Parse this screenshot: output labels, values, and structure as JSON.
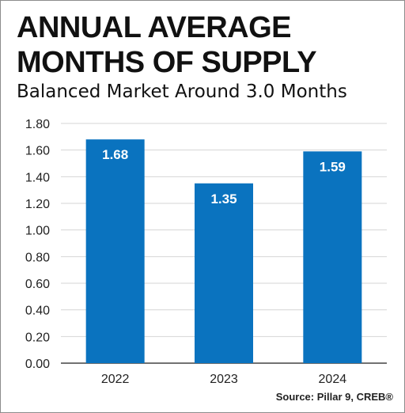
{
  "title": "ANNUAL AVERAGE\nMONTHS OF SUPPLY",
  "subtitle": "Balanced Market Around 3.0 Months",
  "source": "Source: Pillar 9, CREB®",
  "colors": {
    "bar": "#0a73bf",
    "bar_label": "#ffffff",
    "grid": "#d4d4d4",
    "axis": "#444444",
    "tick_text": "#222222"
  },
  "chart_data": {
    "type": "bar",
    "categories": [
      "2022",
      "2023",
      "2024"
    ],
    "values": [
      1.68,
      1.35,
      1.59
    ],
    "data_labels": [
      "1.68",
      "1.35",
      "1.59"
    ],
    "y_tick_labels": [
      "0.00",
      "0.20",
      "0.40",
      "0.60",
      "0.80",
      "1.00",
      "1.20",
      "1.40",
      "1.60",
      "1.80"
    ],
    "ylim": [
      0,
      1.8
    ],
    "y_step": 0.2,
    "grid": true,
    "xlabel": "",
    "ylabel": ""
  }
}
